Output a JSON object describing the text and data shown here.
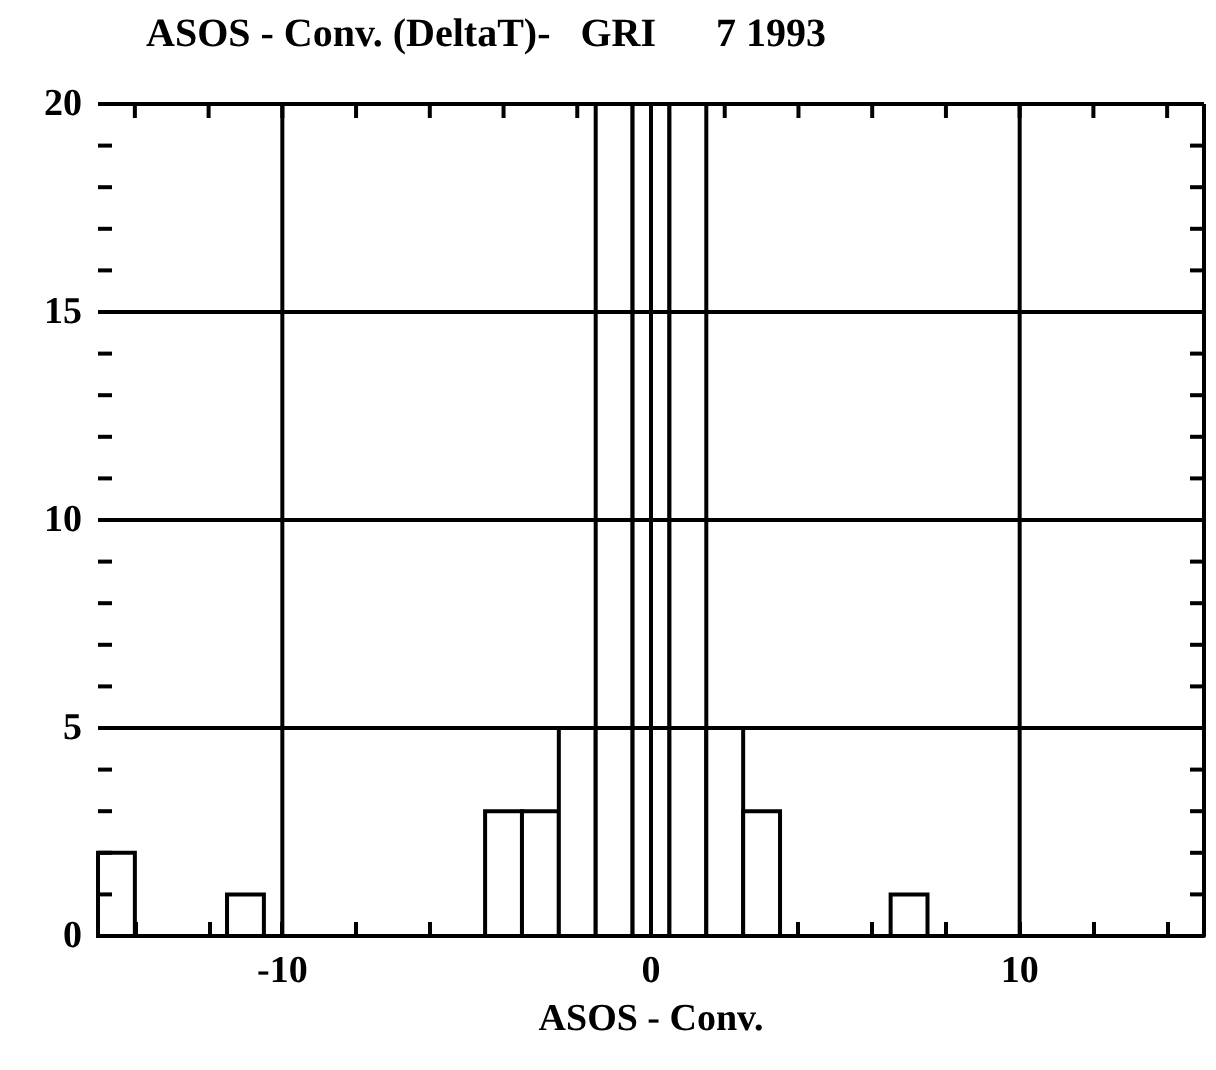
{
  "chart_data": {
    "type": "histogram",
    "title": "ASOS - Conv. (DeltaT)-   GRI      7 1993",
    "xlabel": "ASOS - Conv.",
    "bins": [
      -15,
      -14,
      -11.5,
      -10.5,
      -4.5,
      -3.5,
      -2.5,
      -1.5,
      -0.5,
      0.5,
      1.5,
      2.5,
      3.5,
      6.5,
      7.5
    ],
    "values": [
      2,
      0,
      1,
      0,
      3,
      3,
      5,
      20,
      20,
      20,
      5,
      3,
      0,
      1
    ],
    "color": "#ffffff",
    "xlim": [
      -15,
      15
    ],
    "xticks": [
      {
        "value": -14,
        "label": null
      },
      {
        "value": -12,
        "label": null
      },
      -10,
      {
        "value": -8,
        "label": null
      },
      {
        "value": -6,
        "label": null
      },
      {
        "value": -4,
        "label": null
      },
      {
        "value": -2,
        "label": null
      },
      0,
      {
        "value": 2,
        "label": null
      },
      {
        "value": 4,
        "label": null
      },
      {
        "value": 6,
        "label": null
      },
      {
        "value": 8,
        "label": null
      },
      10,
      {
        "value": 12,
        "label": null
      },
      {
        "value": 14,
        "label": null
      }
    ],
    "ylim": [
      0,
      20
    ],
    "yticks": [
      0,
      {
        "value": 1,
        "label": null
      },
      {
        "value": 2,
        "label": null
      },
      {
        "value": 3,
        "label": null
      },
      {
        "value": 4,
        "label": null
      },
      5,
      {
        "value": 6,
        "label": null
      },
      {
        "value": 7,
        "label": null
      },
      {
        "value": 8,
        "label": null
      },
      {
        "value": 9,
        "label": null
      },
      10,
      {
        "value": 11,
        "label": null
      },
      {
        "value": 12,
        "label": null
      },
      {
        "value": 13,
        "label": null
      },
      {
        "value": 14,
        "label": null
      },
      15,
      {
        "value": 16,
        "label": null
      },
      {
        "value": 17,
        "label": null
      },
      {
        "value": 18,
        "label": null
      },
      {
        "value": 19,
        "label": null
      },
      20
    ],
    "grid": true
  }
}
